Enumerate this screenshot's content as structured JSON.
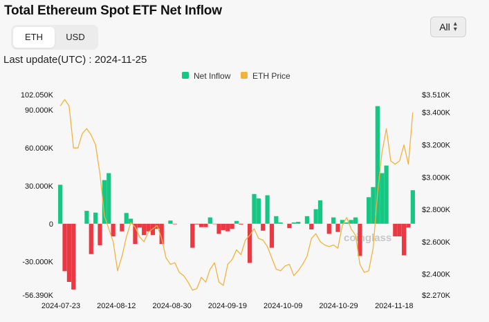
{
  "title": "Total Ethereum Spot ETF Net Inflow",
  "unit_toggle": {
    "options": [
      "ETH",
      "USD"
    ],
    "selected": "ETH"
  },
  "range_select": {
    "value": "All"
  },
  "last_update": "Last update(UTC) : 2024-11-25",
  "watermark": "coinglass",
  "colors": {
    "positive": "#16c784",
    "negative": "#ea3943",
    "price": "#f0b43c"
  },
  "chart_data": {
    "type": "bar+line",
    "legend": [
      "Net Inflow",
      "ETH Price"
    ],
    "legend_position": "top-center",
    "x_tick_labels": [
      "2024-07-23",
      "2024-08-12",
      "2024-08-30",
      "2024-09-19",
      "2024-10-09",
      "2024-10-29",
      "2024-11-18"
    ],
    "y_left_ticks": [
      "102.050K",
      "90.000K",
      "60.000K",
      "30.000K",
      "0",
      "-30.000K",
      "-56.390K"
    ],
    "y_right_ticks": [
      "$3.510K",
      "$3.400K",
      "$3.200K",
      "$3.000K",
      "$2.800K",
      "$2.600K",
      "$2.400K",
      "$2.270K"
    ],
    "y_left_range": [
      -56390,
      102050
    ],
    "y_right_range": [
      2270,
      3510
    ],
    "grid": false,
    "series": [
      {
        "name": "Net Inflow",
        "axis": "left",
        "kind": "bar",
        "values": [
          30800,
          -37500,
          -46000,
          -52000,
          0,
          0,
          10200,
          -24000,
          8800,
          -17000,
          34500,
          40000,
          -10000,
          0,
          -6000,
          8500,
          4000,
          -16000,
          -3000,
          -9000,
          -6000,
          -9000,
          -4000,
          -16000,
          0,
          2500,
          -400,
          0,
          0,
          0,
          -19000,
          -500,
          -2700,
          -2700,
          5000,
          -300,
          -8000,
          -5000,
          -6000,
          -4000,
          2200,
          -600,
          0,
          -31000,
          23500,
          20000,
          -5500,
          22500,
          -19000,
          6000,
          1000,
          0,
          -3500,
          1000,
          1500,
          0,
          6000,
          -4500,
          11500,
          18500,
          0,
          -8000,
          5000,
          -6500,
          3000,
          1000,
          3000,
          5000,
          -25500,
          0,
          21000,
          29000,
          93000,
          40000,
          46000,
          0,
          -10000,
          -10000,
          -25000,
          -3000,
          26500
        ]
      },
      {
        "name": "ETH Price",
        "axis": "right",
        "kind": "line",
        "values": [
          3440,
          3480,
          3440,
          3180,
          3180,
          3270,
          3300,
          3260,
          3200,
          3020,
          2760,
          2680,
          2600,
          2420,
          2510,
          2630,
          2720,
          2690,
          2630,
          2600,
          2660,
          2680,
          2700,
          2620,
          2500,
          2460,
          2470,
          2410,
          2390,
          2350,
          2300,
          2310,
          2380,
          2350,
          2430,
          2470,
          2350,
          2330,
          2460,
          2490,
          2550,
          2520,
          2610,
          2640,
          2680,
          2620,
          2610,
          2570,
          2500,
          2430,
          2420,
          2450,
          2460,
          2390,
          2420,
          2460,
          2510,
          2620,
          2650,
          2600,
          2580,
          2570,
          2580,
          2560,
          2700,
          2750,
          2680,
          2640,
          2460,
          2410,
          2420,
          2560,
          2900,
          3150,
          3300,
          3100,
          3080,
          3100,
          3200,
          3080,
          3400
        ]
      }
    ]
  }
}
